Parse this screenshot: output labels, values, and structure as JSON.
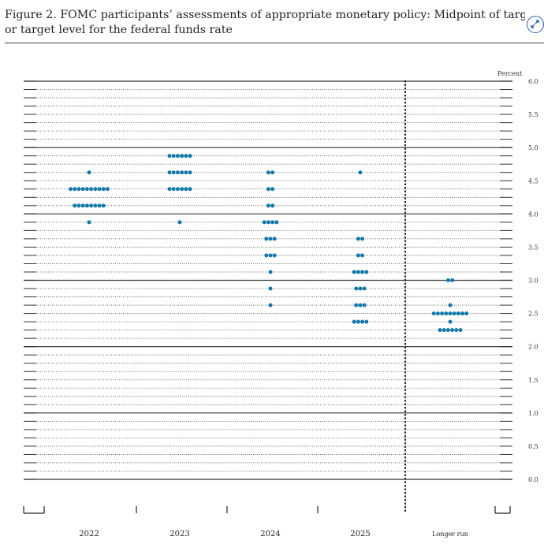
{
  "caption": {
    "line1": "Figure 2.  FOMC participants’ assessments of appropriate monetary policy:  Midpoint of target rang",
    "line2": "or target level for the federal funds rate"
  },
  "chart_data": {
    "type": "scatter",
    "subtype": "dot-plot",
    "title": "FOMC participants’ assessments of appropriate monetary policy: Midpoint of target range or target level for the federal funds rate",
    "ylabel": "Percent",
    "ylim": [
      0,
      6.0
    ],
    "yticks": [
      "6.0",
      "5.5",
      "5.0",
      "4.5",
      "4.0",
      "3.5",
      "3.0",
      "2.5",
      "2.0",
      "1.5",
      "1.0",
      "0.5",
      "0.0"
    ],
    "grid": "horizontal lines every 0.125; solid at whole numbers",
    "categories": [
      "2022",
      "2023",
      "2024",
      "2025",
      "Longer run"
    ],
    "separator": "dashed vertical line between 2025 and Longer run",
    "dot_color": "#1479a8",
    "series": [
      {
        "category": "2022",
        "rate_counts": [
          [
            4.625,
            1
          ],
          [
            4.375,
            10
          ],
          [
            4.125,
            8
          ],
          [
            3.875,
            1
          ]
        ]
      },
      {
        "category": "2023",
        "rate_counts": [
          [
            4.875,
            6
          ],
          [
            4.625,
            6
          ],
          [
            4.375,
            6
          ],
          [
            3.875,
            1
          ]
        ]
      },
      {
        "category": "2024",
        "rate_counts": [
          [
            4.625,
            2
          ],
          [
            4.375,
            2
          ],
          [
            4.125,
            2
          ],
          [
            3.875,
            4
          ],
          [
            3.625,
            3
          ],
          [
            3.375,
            3
          ],
          [
            3.125,
            1
          ],
          [
            2.875,
            1
          ],
          [
            2.625,
            1
          ]
        ]
      },
      {
        "category": "2025",
        "rate_counts": [
          [
            4.625,
            1
          ],
          [
            3.625,
            2
          ],
          [
            3.375,
            2
          ],
          [
            3.125,
            4
          ],
          [
            2.875,
            3
          ],
          [
            2.625,
            3
          ],
          [
            2.375,
            4
          ]
        ]
      },
      {
        "category": "Longer run",
        "rate_counts": [
          [
            3.0,
            2
          ],
          [
            2.625,
            1
          ],
          [
            2.5,
            9
          ],
          [
            2.375,
            1
          ],
          [
            2.25,
            6
          ]
        ]
      }
    ]
  }
}
